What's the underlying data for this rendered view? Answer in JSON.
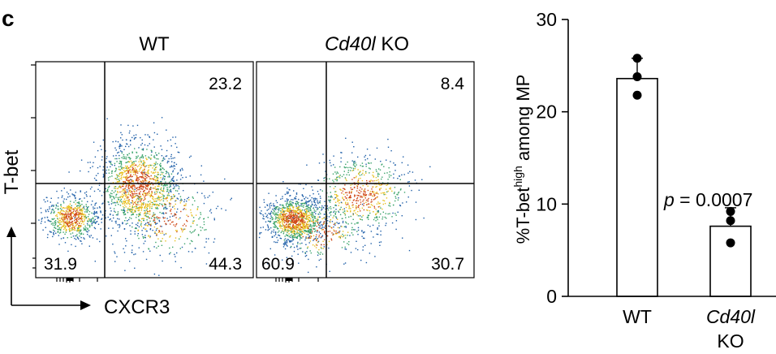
{
  "panel_label": "c",
  "flow_plots": {
    "y_label": "T-bet",
    "x_label": "CXCR3",
    "panels": [
      {
        "title": "WT",
        "title_italic": "",
        "title_rest": "",
        "upper_right": "23.2",
        "lower_left": "31.9",
        "lower_right": "44.3"
      },
      {
        "title": "",
        "title_italic": "Cd40l",
        "title_rest": " KO",
        "upper_right": "8.4",
        "lower_left": "60.9",
        "lower_right": "30.7"
      }
    ]
  },
  "colors": {
    "bar_fill": "#ffffff",
    "axis": "#000000",
    "point": "#000000",
    "density_low": "#1f5fa8",
    "density_mid": "#3aa36a",
    "density_high": "#e8c020",
    "density_peak": "#d04a1a"
  },
  "chart_data": {
    "type": "bar",
    "categories": [
      "WT",
      "Cd40l KO"
    ],
    "category_lines": [
      [
        "WT"
      ],
      [
        "Cd40l",
        "KO"
      ]
    ],
    "values": [
      23.6,
      7.6
    ],
    "errors": [
      2.2,
      2.0
    ],
    "points": [
      [
        25.8,
        23.8,
        21.8
      ],
      [
        9.2,
        8.2,
        5.8
      ]
    ],
    "ylabel": "%T-bet",
    "ylabel_sup": "high",
    "ylabel_rest": " among MP",
    "ylim": [
      0,
      30
    ],
    "yticks": [
      0,
      10,
      20,
      30
    ],
    "ytick_labels": [
      "0",
      "10",
      "20",
      "30"
    ],
    "annotation": {
      "p": "p",
      "text": " = 0.0007"
    },
    "grid": false
  }
}
